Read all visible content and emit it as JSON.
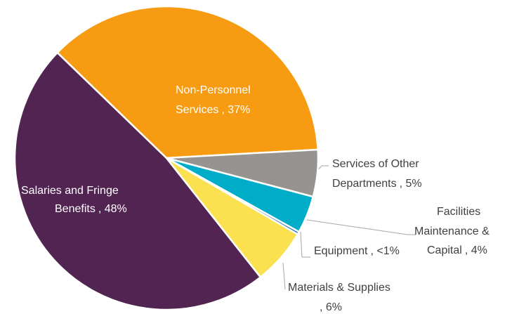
{
  "chart_data": {
    "type": "pie",
    "categories": [
      "Non-Personnel Services",
      "Services of Other Departments",
      "Facilities Maintenance & Capital",
      "Equipment",
      "Materials & Supplies",
      "Salaries and Fringe Benefits"
    ],
    "values": [
      37,
      5,
      4,
      0.3,
      6,
      48
    ],
    "value_labels": [
      ", 37%",
      ", 5%",
      ", 4%",
      ", <1%",
      ", 6%",
      ", 48%"
    ],
    "colors": [
      "#f79b12",
      "#979390",
      "#00adc8",
      "#2e75b6",
      "#fbe04f",
      "#522452"
    ]
  }
}
